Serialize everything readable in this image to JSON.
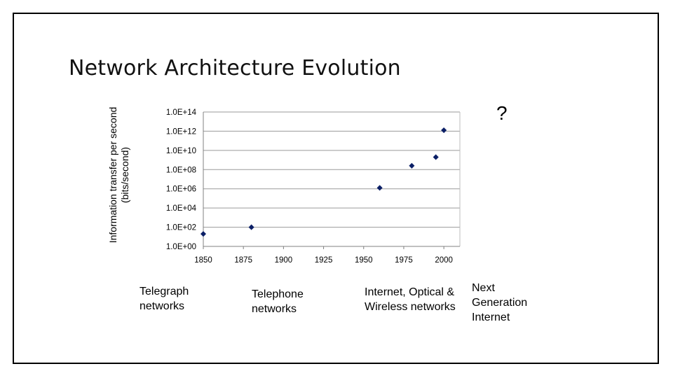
{
  "slide": {
    "title": "Network Architecture Evolution",
    "question_mark": "?"
  },
  "eras": [
    {
      "label": "Telegraph networks"
    },
    {
      "label": "Telephone networks"
    },
    {
      "label": "Internet, Optical & Wireless networks"
    },
    {
      "label": "Next Generation Internet"
    }
  ],
  "chart_data": {
    "type": "scatter",
    "title": "",
    "xlabel": "",
    "ylabel": "Information transfer per second (bits/second)",
    "x_ticks": [
      "1850",
      "1875",
      "1900",
      "1925",
      "1950",
      "1975",
      "2000"
    ],
    "x_tick_values": [
      1850,
      1875,
      1900,
      1925,
      1950,
      1975,
      2000
    ],
    "y_ticks": [
      "1.0E+00",
      "1.0E+02",
      "1.0E+04",
      "1.0E+06",
      "1.0E+08",
      "1.0E+10",
      "1.0E+12",
      "1.0E+14"
    ],
    "y_scale": "log10",
    "xlim": [
      1850,
      2010
    ],
    "ylim_exponent": [
      0,
      14
    ],
    "grid": "horizontal",
    "marker_color": "#0b1f66",
    "points": [
      {
        "x": 1850,
        "log10_y": 1.3
      },
      {
        "x": 1880,
        "log10_y": 2.0
      },
      {
        "x": 1960,
        "log10_y": 6.1
      },
      {
        "x": 1980,
        "log10_y": 8.4
      },
      {
        "x": 1995,
        "log10_y": 9.3
      },
      {
        "x": 2000,
        "log10_y": 12.1
      }
    ]
  }
}
